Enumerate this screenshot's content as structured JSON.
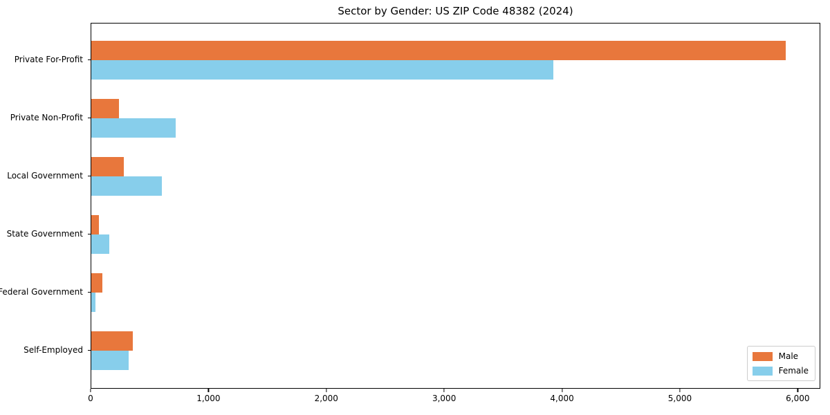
{
  "title": "Sector by Gender: US ZIP Code 48382 (2024)",
  "chart_data": {
    "type": "bar",
    "orientation": "horizontal",
    "title": "Sector by Gender: US ZIP Code 48382 (2024)",
    "categories": [
      "Private For-Profit",
      "Private Non-Profit",
      "Local Government",
      "State Government",
      "Federal Government",
      "Self-Employed"
    ],
    "series": [
      {
        "name": "Male",
        "color": "#e8773c",
        "values": [
          5890,
          235,
          275,
          65,
          95,
          355
        ]
      },
      {
        "name": "Female",
        "color": "#87ceeb",
        "values": [
          3920,
          715,
          600,
          150,
          35,
          315
        ]
      }
    ],
    "xlabel": "",
    "ylabel": "",
    "xlim": [
      0,
      6180
    ],
    "xticks": [
      0,
      1000,
      2000,
      3000,
      4000,
      5000,
      6000
    ],
    "xtick_labels": [
      "0",
      "1,000",
      "2,000",
      "3,000",
      "4,000",
      "5,000",
      "6,000"
    ],
    "legend_position": "lower right",
    "grid": false,
    "background_color": "#ffffff",
    "frame_color": "#000000"
  }
}
